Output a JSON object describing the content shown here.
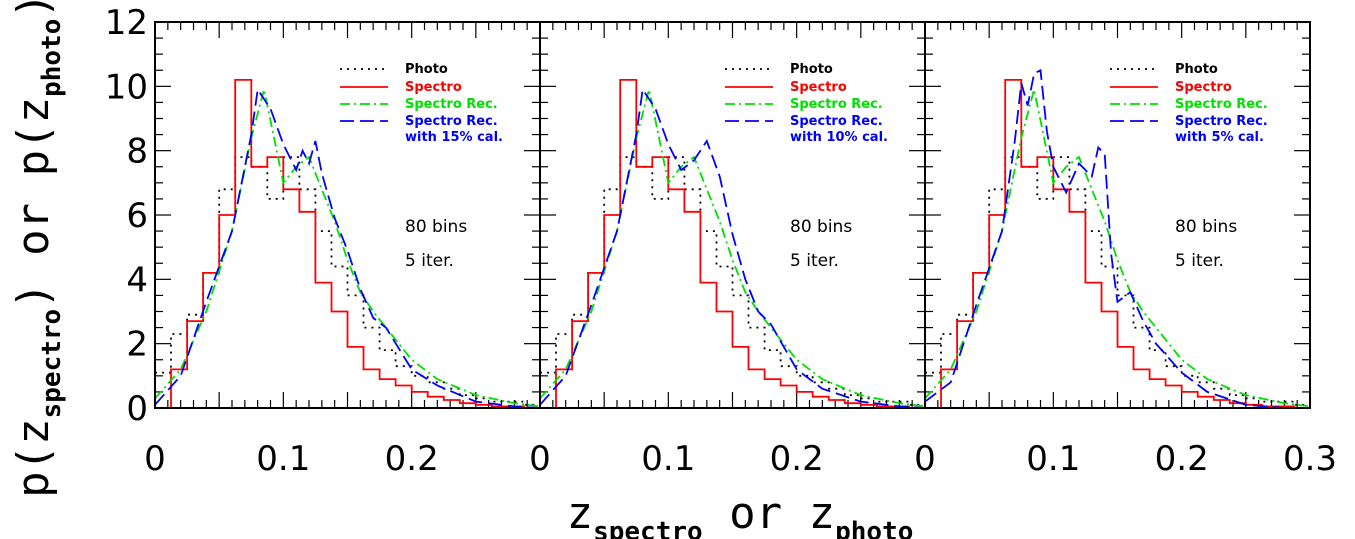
{
  "figure": {
    "xlabel_main": "z",
    "xlabel_sub1": "spectro",
    "xlabel_mid": " or z",
    "xlabel_sub2": "photo",
    "ylabel_a": "p(z",
    "ylabel_sub1": "spectro",
    "ylabel_b": ") or p(z",
    "ylabel_sub2": "photo",
    "ylabel_c": ")"
  },
  "colors": {
    "photo": "#000000",
    "spectro": "#ff0000",
    "spectro_rec": "#00e000",
    "spectro_rec_cal": "#0000ff"
  },
  "chart_data": [
    {
      "type": "line",
      "xlim": [
        0,
        0.3
      ],
      "ylim": [
        0,
        12
      ],
      "x_ticks": [
        "0",
        "0.1",
        "0.2"
      ],
      "y_ticks": [
        "0",
        "2",
        "4",
        "6",
        "8",
        "10",
        "12"
      ],
      "legend": [
        "Photo",
        "Spectro",
        "Spectro Rec.",
        "Spectro Rec.",
        "with 15% cal."
      ],
      "annotations": [
        "80 bins",
        "5 iter."
      ],
      "bin_edges": [
        0,
        0.0125,
        0.025,
        0.0375,
        0.05,
        0.0625,
        0.075,
        0.0875,
        0.1,
        0.1125,
        0.125,
        0.1375,
        0.15,
        0.1625,
        0.175,
        0.1875,
        0.2,
        0.2125,
        0.225,
        0.2375,
        0.25,
        0.2625,
        0.275,
        0.2875,
        0.3
      ],
      "series": [
        {
          "name": "Photo",
          "style": "dotted",
          "values": [
            1.1,
            2.3,
            2.9,
            4.2,
            6.8,
            7.8,
            7.5,
            6.5,
            7.8,
            6.8,
            5.5,
            4.4,
            3.5,
            2.5,
            1.8,
            1.3,
            1.0,
            0.8,
            0.6,
            0.4,
            0.3,
            0.2,
            0.2,
            0.1
          ]
        },
        {
          "name": "Spectro",
          "style": "solid",
          "values": [
            0.0,
            1.2,
            2.7,
            4.2,
            6.0,
            10.2,
            7.5,
            7.8,
            6.8,
            6.1,
            3.9,
            3.0,
            1.9,
            1.2,
            0.9,
            0.7,
            0.5,
            0.35,
            0.25,
            0.15,
            0.1,
            0.05,
            0.05,
            0.0
          ]
        },
        {
          "name": "Spectro Rec.",
          "style": "dashdot",
          "x": [
            0.0,
            0.02,
            0.04,
            0.06,
            0.075,
            0.085,
            0.1,
            0.11,
            0.12,
            0.13,
            0.14,
            0.15,
            0.16,
            0.17,
            0.18,
            0.2,
            0.22,
            0.25,
            0.28,
            0.3
          ],
          "y": [
            0.3,
            1.2,
            3.0,
            5.5,
            8.4,
            9.9,
            7.0,
            7.5,
            7.8,
            6.8,
            5.8,
            4.6,
            3.6,
            3.0,
            2.5,
            1.5,
            0.9,
            0.4,
            0.15,
            0.05
          ]
        },
        {
          "name": "Spectro Rec. with 15% cal.",
          "style": "dashed",
          "x": [
            0.0,
            0.02,
            0.04,
            0.06,
            0.075,
            0.08,
            0.09,
            0.1,
            0.11,
            0.115,
            0.12,
            0.125,
            0.13,
            0.14,
            0.15,
            0.16,
            0.17,
            0.18,
            0.2,
            0.22,
            0.25,
            0.28,
            0.3
          ],
          "y": [
            0.1,
            1.0,
            3.3,
            5.5,
            8.5,
            9.9,
            9.3,
            8.2,
            7.4,
            8.0,
            7.6,
            8.3,
            7.3,
            5.9,
            4.9,
            3.7,
            2.8,
            2.5,
            1.2,
            0.7,
            0.2,
            0.05,
            0.0
          ]
        }
      ]
    },
    {
      "type": "line",
      "xlim": [
        0,
        0.3
      ],
      "ylim": [
        0,
        12
      ],
      "x_ticks": [
        "0",
        "0.1",
        "0.2"
      ],
      "y_ticks": [],
      "legend": [
        "Photo",
        "Spectro",
        "Spectro Rec.",
        "Spectro Rec.",
        "with 10% cal."
      ],
      "annotations": [
        "80 bins",
        "5 iter."
      ],
      "bin_edges": [
        0,
        0.0125,
        0.025,
        0.0375,
        0.05,
        0.0625,
        0.075,
        0.0875,
        0.1,
        0.1125,
        0.125,
        0.1375,
        0.15,
        0.1625,
        0.175,
        0.1875,
        0.2,
        0.2125,
        0.225,
        0.2375,
        0.25,
        0.2625,
        0.275,
        0.2875,
        0.3
      ],
      "series": [
        {
          "name": "Photo",
          "style": "dotted",
          "values": [
            1.1,
            2.3,
            2.9,
            4.2,
            6.8,
            7.8,
            7.5,
            6.5,
            7.8,
            6.8,
            5.5,
            4.4,
            3.5,
            2.5,
            1.8,
            1.3,
            1.0,
            0.8,
            0.6,
            0.4,
            0.3,
            0.2,
            0.2,
            0.1
          ]
        },
        {
          "name": "Spectro",
          "style": "solid",
          "values": [
            0.0,
            1.2,
            2.7,
            4.2,
            6.0,
            10.2,
            7.5,
            7.8,
            6.8,
            6.1,
            3.9,
            3.0,
            1.9,
            1.2,
            0.9,
            0.7,
            0.5,
            0.35,
            0.25,
            0.15,
            0.1,
            0.05,
            0.05,
            0.0
          ]
        },
        {
          "name": "Spectro Rec.",
          "style": "dashdot",
          "x": [
            0.0,
            0.02,
            0.04,
            0.06,
            0.075,
            0.085,
            0.1,
            0.11,
            0.12,
            0.13,
            0.14,
            0.15,
            0.16,
            0.17,
            0.18,
            0.2,
            0.22,
            0.25,
            0.28,
            0.3
          ],
          "y": [
            0.3,
            1.2,
            3.0,
            5.5,
            8.4,
            9.9,
            7.0,
            7.5,
            7.8,
            6.8,
            5.8,
            4.6,
            3.6,
            3.0,
            2.5,
            1.5,
            0.9,
            0.4,
            0.15,
            0.05
          ]
        },
        {
          "name": "Spectro Rec. with 10% cal.",
          "style": "dashed",
          "x": [
            0.0,
            0.02,
            0.04,
            0.06,
            0.075,
            0.08,
            0.09,
            0.1,
            0.11,
            0.12,
            0.13,
            0.14,
            0.15,
            0.16,
            0.17,
            0.18,
            0.2,
            0.22,
            0.25,
            0.28,
            0.3
          ],
          "y": [
            0.1,
            1.0,
            3.2,
            5.5,
            8.5,
            9.9,
            9.3,
            8.2,
            7.4,
            7.7,
            8.3,
            7.2,
            5.4,
            4.0,
            3.0,
            2.6,
            1.2,
            0.6,
            0.2,
            0.05,
            0.0
          ]
        }
      ]
    },
    {
      "type": "line",
      "xlim": [
        0,
        0.3
      ],
      "ylim": [
        0,
        12
      ],
      "x_ticks": [
        "0",
        "0.1",
        "0.2",
        "0.3"
      ],
      "y_ticks": [],
      "legend": [
        "Photo",
        "Spectro",
        "Spectro Rec.",
        "Spectro Rec.",
        "with 5% cal."
      ],
      "annotations": [
        "80 bins",
        "5 iter."
      ],
      "bin_edges": [
        0,
        0.0125,
        0.025,
        0.0375,
        0.05,
        0.0625,
        0.075,
        0.0875,
        0.1,
        0.1125,
        0.125,
        0.1375,
        0.15,
        0.1625,
        0.175,
        0.1875,
        0.2,
        0.2125,
        0.225,
        0.2375,
        0.25,
        0.2625,
        0.275,
        0.2875,
        0.3
      ],
      "series": [
        {
          "name": "Photo",
          "style": "dotted",
          "values": [
            1.1,
            2.3,
            2.9,
            4.2,
            6.8,
            7.8,
            7.5,
            6.5,
            7.8,
            6.8,
            5.5,
            4.4,
            3.5,
            2.5,
            1.8,
            1.3,
            1.0,
            0.8,
            0.6,
            0.4,
            0.3,
            0.2,
            0.2,
            0.1
          ]
        },
        {
          "name": "Spectro",
          "style": "solid",
          "values": [
            0.0,
            1.2,
            2.7,
            4.2,
            6.0,
            10.2,
            7.5,
            7.8,
            6.8,
            6.1,
            3.9,
            3.0,
            1.9,
            1.2,
            0.9,
            0.7,
            0.5,
            0.35,
            0.25,
            0.15,
            0.1,
            0.05,
            0.05,
            0.0
          ]
        },
        {
          "name": "Spectro Rec.",
          "style": "dashdot",
          "x": [
            0.0,
            0.02,
            0.04,
            0.06,
            0.075,
            0.085,
            0.1,
            0.11,
            0.12,
            0.13,
            0.14,
            0.15,
            0.16,
            0.17,
            0.18,
            0.2,
            0.22,
            0.25,
            0.28,
            0.3
          ],
          "y": [
            0.3,
            1.2,
            3.0,
            5.5,
            8.4,
            9.9,
            7.0,
            7.5,
            7.8,
            6.8,
            5.8,
            4.6,
            3.6,
            3.0,
            2.5,
            1.5,
            0.9,
            0.4,
            0.15,
            0.05
          ]
        },
        {
          "name": "Spectro Rec. with 5% cal.",
          "style": "dashed",
          "x": [
            0.0,
            0.02,
            0.04,
            0.06,
            0.07,
            0.075,
            0.08,
            0.085,
            0.09,
            0.095,
            0.1,
            0.11,
            0.12,
            0.13,
            0.135,
            0.14,
            0.145,
            0.15,
            0.16,
            0.17,
            0.18,
            0.2,
            0.22,
            0.25,
            0.28,
            0.3
          ],
          "y": [
            0.2,
            0.8,
            3.2,
            5.5,
            8.3,
            10.1,
            9.4,
            10.4,
            10.5,
            8.6,
            7.5,
            6.7,
            7.6,
            7.2,
            8.1,
            7.9,
            4.8,
            3.3,
            3.6,
            2.7,
            2.0,
            1.1,
            0.5,
            0.1,
            0.0,
            0.0
          ]
        }
      ]
    }
  ]
}
